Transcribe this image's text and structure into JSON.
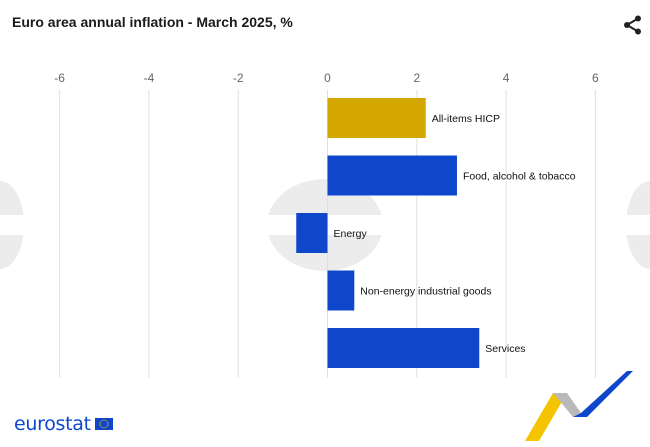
{
  "header": {
    "title": "Euro area annual inflation - March 2025, %",
    "share_icon": "share-icon"
  },
  "brand": {
    "logo_text": "eurostat",
    "flag_icon": "eu-flag-icon"
  },
  "colors": {
    "headline": "#d3a600",
    "component": "#0e47cb",
    "grid": "#e0e0e0",
    "tick_text": "#666666"
  },
  "chart_data": {
    "type": "bar",
    "orientation": "horizontal",
    "title": "Euro area annual inflation - March 2025, %",
    "xlim": [
      -7,
      7
    ],
    "xticks": [
      -6,
      -4,
      -2,
      0,
      2,
      4,
      6
    ],
    "xtick_labels": [
      "-6",
      "-4",
      "-2",
      "0",
      "2",
      "4",
      "6"
    ],
    "xaxis_position": "top",
    "grid": true,
    "categories": [
      "All-items HICP",
      "Food, alcohol & tobacco",
      "Energy",
      "Non-energy industrial goods",
      "Services"
    ],
    "values": [
      2.2,
      2.9,
      -0.7,
      0.6,
      3.4
    ],
    "bar_colors": [
      "#d3a600",
      "#0e47cb",
      "#0e47cb",
      "#0e47cb",
      "#0e47cb"
    ],
    "label_position": "right of zero line"
  }
}
